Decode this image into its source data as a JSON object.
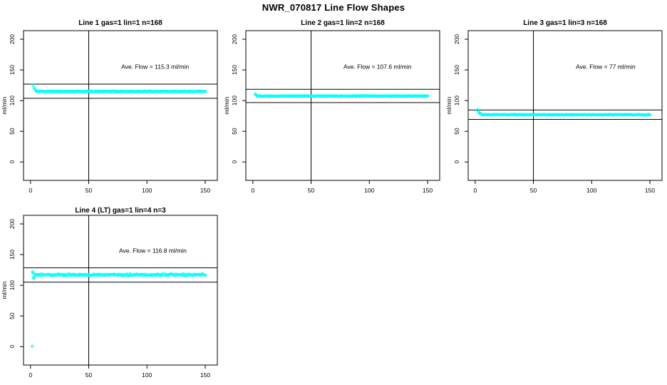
{
  "page": {
    "title": "NWR_070817  Line Flow Shapes"
  },
  "chart_data": {
    "type": "scatter",
    "title": "NWR_070817  Line Flow Shapes",
    "ylabel": "ml/min",
    "xlabel": "",
    "point_color": "#00ffff",
    "axis_color": "#000000",
    "background": "#ffffff",
    "grid": false,
    "x_ticks": [
      0,
      50,
      100,
      150
    ],
    "y_ticks": [
      0,
      50,
      100,
      150,
      200
    ],
    "xlim": [
      -6,
      160.4
    ],
    "ylim": [
      -30,
      214
    ],
    "vline_x": 50,
    "panels": [
      {
        "id": "line-1",
        "title": "Line 1 gas=1 lin=1 n=168",
        "n": 168,
        "avg_flow": 115.3,
        "avg_flow_text": "Ave. Flow =  115.3  ml/min",
        "ref_lines": [
          126.8,
          103.8
        ],
        "label_pos": {
          "x": 107,
          "y": 152
        },
        "series": {
          "x_end": 150,
          "steady_x_start": 5.5,
          "steady_value": 115.0,
          "noise": 0.7,
          "seed": 11,
          "transient": [
            [
              2,
              126
            ],
            [
              2.9,
              121
            ],
            [
              3.8,
              118.5
            ],
            [
              4.7,
              116.5
            ]
          ],
          "outliers": []
        }
      },
      {
        "id": "line-2",
        "title": "Line 2 gas=1 lin=2 n=168",
        "n": 168,
        "avg_flow": 107.6,
        "avg_flow_text": "Ave. Flow =  107.6  ml/min",
        "ref_lines": [
          118.4,
          96.8
        ],
        "label_pos": {
          "x": 107,
          "y": 152
        },
        "series": {
          "x_end": 150,
          "steady_x_start": 3.8,
          "steady_value": 107.5,
          "noise": 0.6,
          "seed": 22,
          "transient": [
            [
              2,
              110.5
            ],
            [
              2.9,
              109
            ]
          ],
          "outliers": []
        }
      },
      {
        "id": "line-3",
        "title": "Line 3 gas=1 lin=3 n=168",
        "n": 168,
        "avg_flow": 77,
        "avg_flow_text": "Ave. Flow =  77  ml/min",
        "ref_lines": [
          84.7,
          69.3
        ],
        "label_pos": {
          "x": 112,
          "y": 152
        },
        "series": {
          "x_end": 150,
          "steady_x_start": 5.6,
          "steady_value": 77.0,
          "noise": 0.6,
          "seed": 33,
          "transient": [
            [
              2,
              85
            ],
            [
              2.9,
              81.5
            ],
            [
              3.8,
              79.5
            ],
            [
              4.7,
              78.5
            ]
          ],
          "outliers": []
        }
      },
      {
        "id": "line-4",
        "title": "Line 4 (LT) gas=1 lin=4 n=3",
        "n": 3,
        "avg_flow": 116.8,
        "avg_flow_text": "Ave. Flow =  116.8  ml/min",
        "ref_lines": [
          128.5,
          105.1
        ],
        "label_pos": {
          "x": 105,
          "y": 153
        },
        "series": {
          "x_end": 150,
          "steady_x_start": 4.0,
          "steady_value": 117.0,
          "noise": 1.7,
          "seed": 44,
          "transient": [
            [
              1.8,
              122
            ],
            [
              2.3,
              120
            ],
            [
              2.6,
              113
            ],
            [
              3.1,
              111.5
            ]
          ],
          "outliers": [
            [
              1.5,
              0.5
            ]
          ]
        }
      }
    ]
  }
}
